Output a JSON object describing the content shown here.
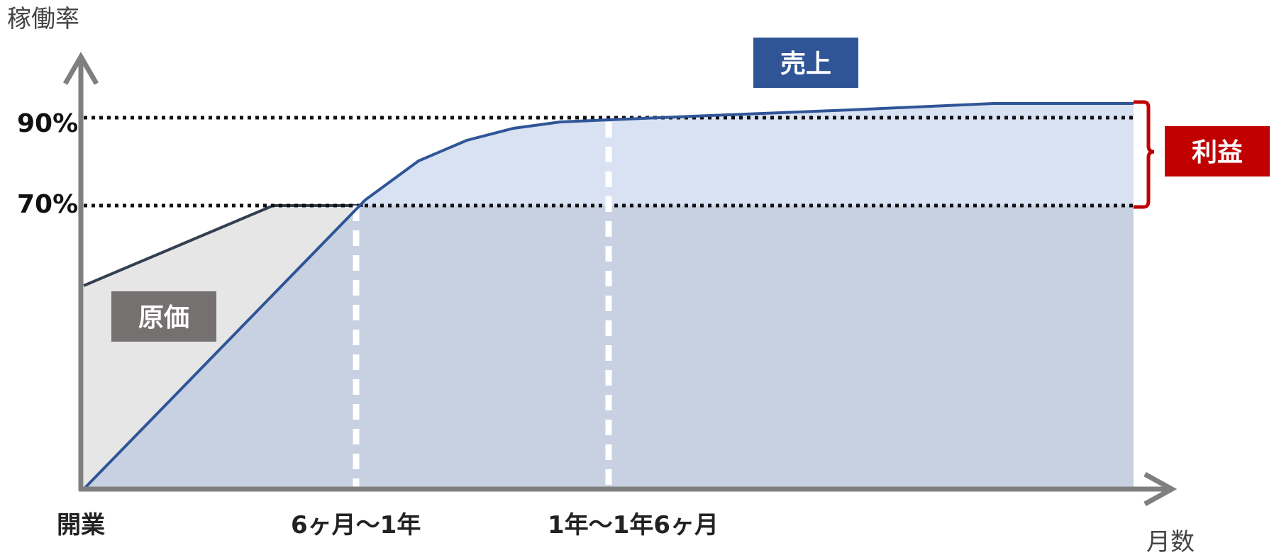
{
  "axes": {
    "y_title": "稼働率",
    "x_title": "月数"
  },
  "y_levels": [
    {
      "value": 90,
      "label": "90%"
    },
    {
      "value": 70,
      "label": "70%"
    }
  ],
  "x_ticks": [
    {
      "id": "open",
      "label": "開業"
    },
    {
      "id": "6m-1y",
      "label": "6ヶ月〜1年"
    },
    {
      "id": "1y-1y6m",
      "label": "1年〜1年6ヶ月"
    }
  ],
  "labels": {
    "sales": "売上",
    "cost": "原価",
    "profit": "利益"
  },
  "colors": {
    "axis": "#7f7f7f",
    "sales_line": "#2f5597",
    "sales_fill": "#d9e2f3",
    "overlap_fill": "#c8d1e1",
    "cost_line": "#333f50",
    "cost_fill": "#e6e6e6",
    "sales_label_bg": "#2f5597",
    "cost_label_bg": "#767171",
    "profit_label_bg": "#c00000",
    "profit_bracket": "#c00000"
  }
}
